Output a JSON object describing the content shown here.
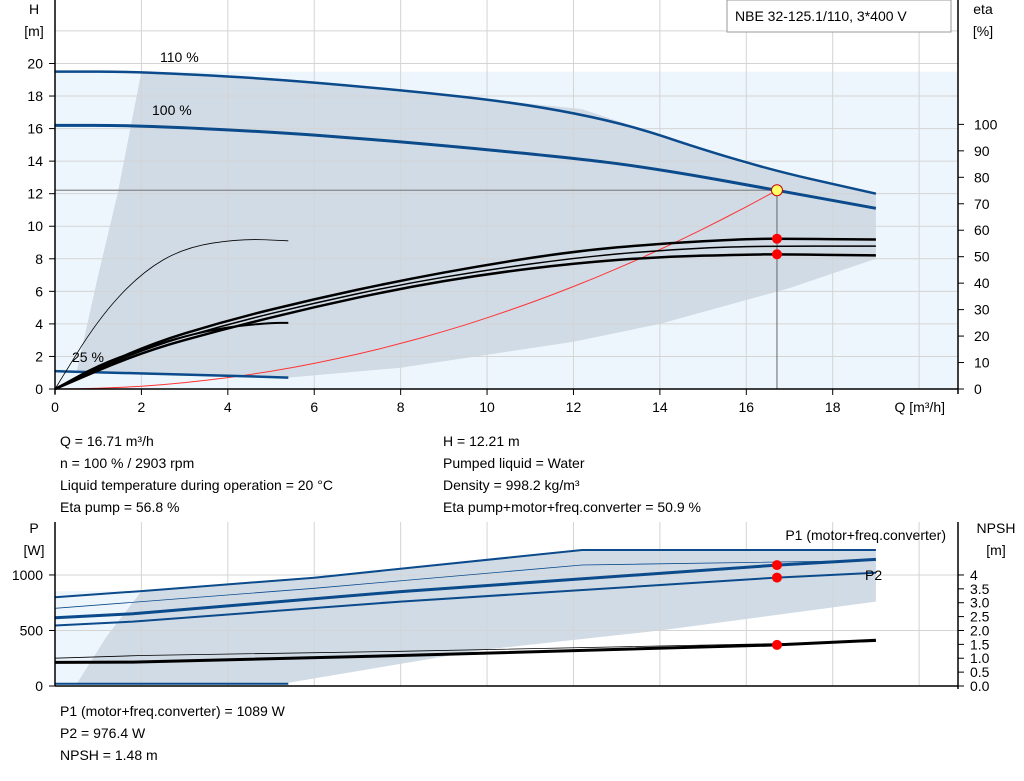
{
  "title_box": "NBE 32-125.1/110, 3*400 V",
  "colors": {
    "curve": "#0b4a8b",
    "envelope": "#d0dbe6",
    "light_envelope": "#eef6fd",
    "operating_point": "#ff0000",
    "system_curve": "#ff3333",
    "duty_marker": "#ffff66"
  },
  "chart_data": [
    {
      "type": "line",
      "title": "",
      "xlabel": "Q [m³/h]",
      "ylabel": "H\n[m]",
      "y2label": "eta\n[%]",
      "xlabel_text": "Q [m³/h]",
      "ylabel_lines": [
        "H",
        "[m]"
      ],
      "y2label_lines": [
        "eta",
        "[%]"
      ],
      "xlim": [
        0,
        20.9
      ],
      "ylim": [
        0,
        23.9
      ],
      "y2lim": [
        0,
        147
      ],
      "xticks": [
        0,
        2,
        4,
        6,
        8,
        10,
        12,
        14,
        16,
        18
      ],
      "yticks": [
        0,
        2,
        4,
        6,
        8,
        10,
        12,
        14,
        16,
        18,
        20
      ],
      "y2ticks": [
        0,
        10,
        20,
        30,
        40,
        50,
        60,
        70,
        80,
        90,
        100
      ],
      "grid": true,
      "curve_labels": [
        "110 %",
        "100 %",
        "25 %"
      ],
      "series": [
        {
          "kind": "head",
          "speed": "110 %",
          "points": [
            [
              0,
              19.5
            ],
            [
              2,
              19.5
            ],
            [
              6,
              18.9
            ],
            [
              12.2,
              17.2
            ],
            [
              16,
              13.8
            ],
            [
              19,
              12
            ]
          ]
        },
        {
          "kind": "head",
          "speed": "100 %",
          "points": [
            [
              0,
              16.2
            ],
            [
              1.8,
              16.2
            ],
            [
              5,
              15.8
            ],
            [
              8,
              15.2
            ],
            [
              12,
              14.2
            ],
            [
              14,
              13.5
            ],
            [
              16.71,
              12.21
            ],
            [
              19,
              11.1
            ]
          ]
        },
        {
          "kind": "head",
          "speed": "25 %",
          "points": [
            [
              0,
              1.1
            ],
            [
              0.5,
              1.05
            ],
            [
              3,
              0.9
            ],
            [
              5.4,
              0.7
            ]
          ]
        },
        {
          "kind": "eta",
          "points": [
            [
              0,
              0
            ],
            [
              2,
              16
            ],
            [
              4,
              26
            ],
            [
              6,
              34
            ],
            [
              8,
              41
            ],
            [
              10,
              47
            ],
            [
              12,
              52
            ],
            [
              14,
              55
            ],
            [
              16,
              56.7
            ],
            [
              16.71,
              56.8
            ],
            [
              19,
              56.5
            ]
          ]
        },
        {
          "kind": "eta",
          "points": [
            [
              0,
              0
            ],
            [
              2,
              14
            ],
            [
              4,
              23
            ],
            [
              6,
              31
            ],
            [
              8,
              38
            ],
            [
              10,
              43.5
            ],
            [
              12,
              47.5
            ],
            [
              14,
              50
            ],
            [
              16,
              50.8
            ],
            [
              16.71,
              50.9
            ],
            [
              19,
              50.5
            ]
          ]
        },
        {
          "kind": "eta",
          "points": [
            [
              0,
              0
            ],
            [
              2,
              15
            ],
            [
              4,
              24.5
            ],
            [
              6,
              32.5
            ],
            [
              8,
              39.5
            ],
            [
              10,
              45
            ],
            [
              12,
              49.5
            ],
            [
              14,
              52.5
            ],
            [
              16,
              54
            ],
            [
              19,
              54
            ]
          ]
        },
        {
          "kind": "eta",
          "points": [
            [
              0,
              0
            ],
            [
              1,
              26.5
            ],
            [
              2,
              44
            ],
            [
              3,
              53.5
            ],
            [
              4.3,
              56.8
            ],
            [
              5.4,
              56
            ]
          ]
        },
        {
          "kind": "eta",
          "points": [
            [
              0,
              0
            ],
            [
              1,
              9
            ],
            [
              2,
              15
            ],
            [
              3,
              20
            ],
            [
              4,
              23.5
            ],
            [
              5,
              25
            ],
            [
              5.4,
              25
            ]
          ]
        }
      ],
      "envelope": [
        [
          2,
          19.5
        ],
        [
          6,
          18.9
        ],
        [
          12.2,
          17.2
        ],
        [
          16,
          13.8
        ],
        [
          19,
          12
        ],
        [
          19,
          8
        ],
        [
          17,
          6.2
        ],
        [
          14,
          4
        ],
        [
          12,
          2.9
        ],
        [
          8,
          1.3
        ],
        [
          5.4,
          0.7
        ],
        [
          0.5,
          1.05
        ],
        [
          1,
          7
        ],
        [
          1.45,
          12
        ],
        [
          2,
          19.5
        ]
      ],
      "system_curve": {
        "H_at_duty": 12.21,
        "Q_at_duty": 16.71
      },
      "duty_points": [
        {
          "Q": 16.71,
          "H": 12.21
        },
        {
          "Q": 16.71,
          "eta": 56.8
        },
        {
          "Q": 16.71,
          "eta": 50.9
        }
      ]
    },
    {
      "type": "line",
      "title": "",
      "xlim": [
        0,
        20.9
      ],
      "ylim": [
        0,
        1477
      ],
      "y2lim": [
        0,
        5.32
      ],
      "ylabel_lines": [
        "P",
        "[W]"
      ],
      "y2label_lines": [
        "NPSH",
        "[m]"
      ],
      "yticks": [
        0,
        500,
        1000
      ],
      "y2ticks": [
        "0.0",
        "0.5",
        "1.0",
        "1.5",
        "2.0",
        "2.5",
        "3.0",
        "3.5",
        "4"
      ],
      "grid": true,
      "legend_labels": [
        "P1 (motor+freq.converter)",
        "P2"
      ],
      "series": [
        {
          "kind": "P",
          "points": [
            [
              0,
              800
            ],
            [
              2,
              855
            ],
            [
              6,
              975
            ],
            [
              12.2,
              1225
            ],
            [
              19,
              1225
            ]
          ]
        },
        {
          "kind": "P",
          "thin": true,
          "points": [
            [
              0,
              700
            ],
            [
              6,
              880
            ],
            [
              12.2,
              1090
            ],
            [
              19,
              1130
            ]
          ]
        },
        {
          "kind": "P1",
          "points": [
            [
              0,
              615
            ],
            [
              1.8,
              650
            ],
            [
              8,
              850
            ],
            [
              16.71,
              1089
            ],
            [
              19,
              1140
            ]
          ]
        },
        {
          "kind": "P2",
          "points": [
            [
              0,
              545
            ],
            [
              1.8,
              580
            ],
            [
              8,
              760
            ],
            [
              16.71,
              976
            ],
            [
              19,
              1020
            ]
          ]
        },
        {
          "kind": "P",
          "points": [
            [
              0,
              20
            ],
            [
              5.4,
              20
            ]
          ]
        },
        {
          "kind": "NPSH",
          "points": [
            [
              0,
              0.85
            ],
            [
              1.8,
              0.86
            ],
            [
              8,
              1.1
            ],
            [
              16.71,
              1.48
            ],
            [
              19,
              1.65
            ]
          ]
        },
        {
          "kind": "NPSH",
          "thin": true,
          "points": [
            [
              0,
              1.0
            ],
            [
              2,
              1.1
            ],
            [
              8,
              1.25
            ],
            [
              19,
              1.6
            ]
          ]
        }
      ],
      "envelope": [
        [
          2,
          855
        ],
        [
          6,
          975
        ],
        [
          12.2,
          1225
        ],
        [
          19,
          1225
        ],
        [
          19,
          760
        ],
        [
          14,
          500
        ],
        [
          10,
          330
        ],
        [
          5.4,
          30
        ],
        [
          0.5,
          20
        ],
        [
          1.2,
          450
        ],
        [
          2,
          855
        ]
      ],
      "duty_points": [
        {
          "Q": 16.71,
          "P": 1089
        },
        {
          "Q": 16.71,
          "P": 976.4
        },
        {
          "Q": 16.71,
          "NPSH": 1.48
        }
      ]
    }
  ],
  "results_top": {
    "left": [
      "Q = 16.71 m³/h",
      "n = 100 % / 2903 rpm",
      "Liquid temperature during operation = 20 °C",
      "Eta pump = 56.8 %"
    ],
    "right": [
      "H = 12.21 m",
      "Pumped liquid = Water",
      "Density = 998.2 kg/m³",
      "Eta pump+motor+freq.converter = 50.9 %"
    ]
  },
  "results_bottom": [
    "P1 (motor+freq.converter) = 1089 W",
    "P2 = 976.4 W",
    "NPSH = 1.48 m"
  ]
}
